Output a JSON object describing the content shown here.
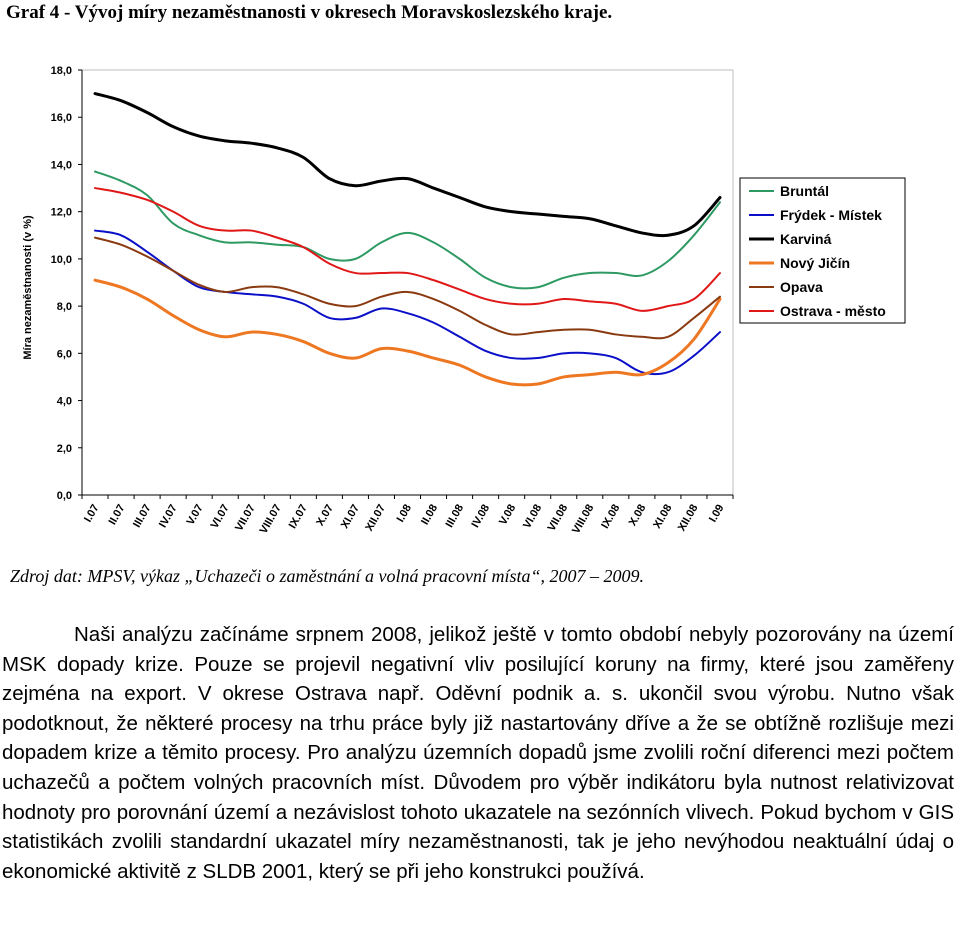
{
  "title": "Graf 4 - Vývoj míry nezaměstnanosti v okresech Moravskoslezského kraje.",
  "source": "Zdroj dat: MPSV, výkaz „Uchazeči o zaměstnání a volná pracovní místa“, 2007 – 2009.",
  "paragraph": "Naši analýzu začínáme srpnem 2008, jelikož ještě v tomto období nebyly pozorovány na území MSK dopady krize. Pouze se projevil negativní vliv posilující koruny na firmy, které jsou zaměřeny zejména na export. V okrese Ostrava např. Oděvní podnik a. s. ukončil svou výrobu. Nutno však podotknout, že některé procesy na trhu práce byly již nastartovány dříve a že se obtížně rozlišuje mezi dopadem krize a těmito procesy. Pro analýzu územních dopadů jsme zvolili roční diferenci mezi počtem uchazečů a počtem volných pracovních míst. Důvodem pro výběr indikátoru byla nutnost relativizovat hodnoty pro porovnání území a nezávislost tohoto ukazatele na sezónních vlivech. Pokud bychom v GIS statistikách zvolili standardní ukazatel míry nezaměstnanosti, tak je jeho nevýhodou neaktuální údaj o ekonomické aktivitě z SLDB 2001, který se při jeho konstrukci používá.",
  "chart_data": {
    "type": "line",
    "ylabel": "Míra nezaměstnanosti (v %)",
    "ylim": [
      0,
      18
    ],
    "yticks": [
      "0,0",
      "2,0",
      "4,0",
      "6,0",
      "8,0",
      "10,0",
      "12,0",
      "14,0",
      "16,0",
      "18,0"
    ],
    "grid": false,
    "legend_position": "right",
    "categories": [
      "I.07",
      "II.07",
      "III.07",
      "IV.07",
      "V.07",
      "VI.07",
      "VII.07",
      "VIII.07",
      "IX.07",
      "X.07",
      "XI.07",
      "XII.07",
      "I.08",
      "II.08",
      "III.08",
      "IV.08",
      "V.08",
      "VI.08",
      "VII.08",
      "VIII.08",
      "IX.08",
      "X.08",
      "XI.08",
      "XII.08",
      "I.09"
    ],
    "series": [
      {
        "name": "Bruntál",
        "color": "#2e9a63",
        "values": [
          13.7,
          13.3,
          12.7,
          11.5,
          11.0,
          10.7,
          10.7,
          10.6,
          10.5,
          10.0,
          10.0,
          10.7,
          11.1,
          10.7,
          10.0,
          9.2,
          8.8,
          8.8,
          9.2,
          9.4,
          9.4,
          9.3,
          9.9,
          11.0,
          12.4
        ]
      },
      {
        "name": "Frýdek - Místek",
        "color": "#0b10c8",
        "values": [
          11.2,
          11.0,
          10.3,
          9.5,
          8.8,
          8.6,
          8.5,
          8.4,
          8.1,
          7.5,
          7.5,
          7.9,
          7.7,
          7.3,
          6.7,
          6.1,
          5.8,
          5.8,
          6.0,
          6.0,
          5.8,
          5.2,
          5.2,
          5.9,
          6.9
        ]
      },
      {
        "name": "Karviná",
        "color": "#000000",
        "values": [
          17.0,
          16.7,
          16.2,
          15.6,
          15.2,
          15.0,
          14.9,
          14.7,
          14.3,
          13.4,
          13.1,
          13.3,
          13.4,
          13.0,
          12.6,
          12.2,
          12.0,
          11.9,
          11.8,
          11.7,
          11.4,
          11.1,
          11.0,
          11.4,
          12.6
        ]
      },
      {
        "name": "Nový Jičín",
        "color": "#ee7722",
        "values": [
          9.1,
          8.8,
          8.3,
          7.6,
          7.0,
          6.7,
          6.9,
          6.8,
          6.5,
          6.0,
          5.8,
          6.2,
          6.1,
          5.8,
          5.5,
          5.0,
          4.7,
          4.7,
          5.0,
          5.1,
          5.2,
          5.1,
          5.6,
          6.6,
          8.3
        ]
      },
      {
        "name": "Opava",
        "color": "#8a3a10",
        "values": [
          10.9,
          10.6,
          10.1,
          9.5,
          8.9,
          8.6,
          8.8,
          8.8,
          8.5,
          8.1,
          8.0,
          8.4,
          8.6,
          8.3,
          7.8,
          7.2,
          6.8,
          6.9,
          7.0,
          7.0,
          6.8,
          6.7,
          6.7,
          7.5,
          8.4
        ]
      },
      {
        "name": "Ostrava - město",
        "color": "#e01818",
        "values": [
          13.0,
          12.8,
          12.5,
          12.0,
          11.4,
          11.2,
          11.2,
          10.9,
          10.5,
          9.8,
          9.4,
          9.4,
          9.4,
          9.1,
          8.7,
          8.3,
          8.1,
          8.1,
          8.3,
          8.2,
          8.1,
          7.8,
          8.0,
          8.3,
          9.4
        ]
      }
    ]
  }
}
